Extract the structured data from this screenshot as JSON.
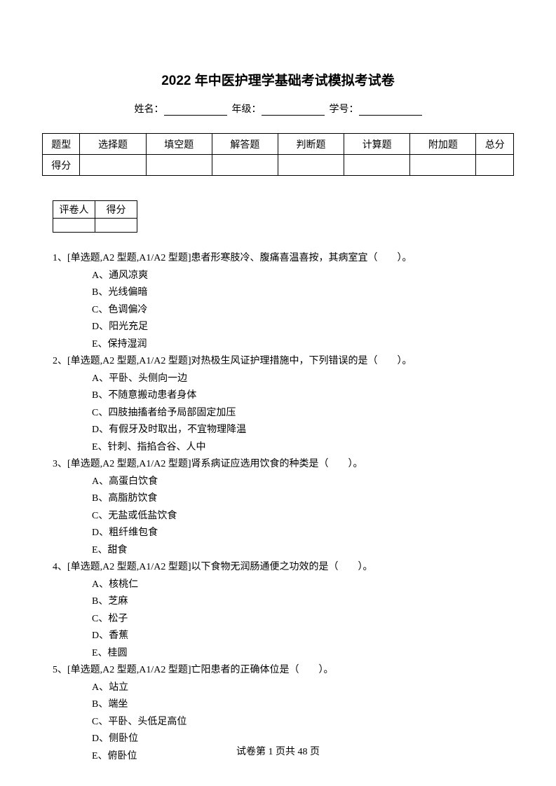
{
  "title": "2022 年中医护理学基础考试模拟考试卷",
  "info": {
    "name_label": "姓名：",
    "grade_label": "年级：",
    "id_label": "学号："
  },
  "score_table": {
    "row1": [
      "题型",
      "选择题",
      "填空题",
      "解答题",
      "判断题",
      "计算题",
      "附加题",
      "总分"
    ],
    "row2_header": "得分"
  },
  "grader_table": {
    "col1": "评卷人",
    "col2": "得分"
  },
  "questions": [
    {
      "num": "1、",
      "prefix": "[单选题,A2 型题,A1/A2 型题]",
      "stem": "患者形寒肢冷、腹痛喜温喜按，其病室宜（　　）。",
      "options": [
        "A、通风凉爽",
        "B、光线偏暗",
        "C、色调偏冷",
        "D、阳光充足",
        "E、保持湿润"
      ]
    },
    {
      "num": "2、",
      "prefix": "[单选题,A2 型题,A1/A2 型题]",
      "stem": "对热极生风证护理措施中，下列错误的是（　　）。",
      "options": [
        "A、平卧、头侧向一边",
        "B、不随意搬动患者身体",
        "C、四肢抽搐者给予局部固定加压",
        "D、有假牙及时取出，不宜物理降温",
        "E、针刺、指掐合谷、人中"
      ]
    },
    {
      "num": "3、",
      "prefix": "[单选题,A2 型题,A1/A2 型题]",
      "stem": "肾系病证应选用饮食的种类是（　　）。",
      "options": [
        "A、高蛋白饮食",
        "B、高脂肪饮食",
        "C、无盐或低盐饮食",
        "D、粗纤维包食",
        "E、甜食"
      ]
    },
    {
      "num": "4、",
      "prefix": "[单选题,A2 型题,A1/A2 型题]",
      "stem": "以下食物无润肠通便之功效的是（　　）。",
      "options": [
        "A、核桃仁",
        "B、芝麻",
        "C、松子",
        "D、香蕉",
        "E、桂圆"
      ]
    },
    {
      "num": "5、",
      "prefix": "[单选题,A2 型题,A1/A2 型题]",
      "stem": "亡阳患者的正确体位是（　　）。",
      "options": [
        "A、站立",
        "B、端坐",
        "C、平卧、头低足高位",
        "D、侧卧位",
        "E、俯卧位"
      ]
    }
  ],
  "footer": {
    "prefix": "试卷第 ",
    "current": "1",
    "mid": " 页共 ",
    "total": "48",
    "suffix": " 页"
  }
}
